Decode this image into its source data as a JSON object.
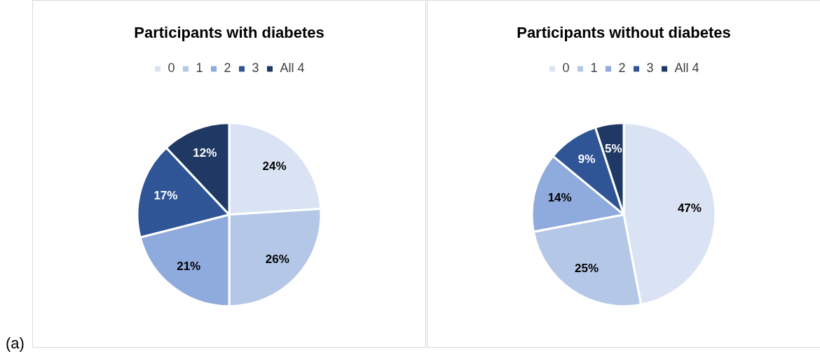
{
  "chart_data": [
    {
      "type": "pie",
      "title": "Participants with diabetes",
      "categories": [
        "0",
        "1",
        "2",
        "3",
        "All 4"
      ],
      "values": [
        24,
        26,
        21,
        17,
        12
      ],
      "value_labels": [
        "24%",
        "26%",
        "21%",
        "17%",
        "12%"
      ],
      "colors": [
        "#dae3f3",
        "#b4c7e7",
        "#8faadc",
        "#2f5597",
        "#1f3864"
      ],
      "legend": "top",
      "annotations": [
        "(a)"
      ]
    },
    {
      "type": "pie",
      "title": "Participants without diabetes",
      "categories": [
        "0",
        "1",
        "2",
        "3",
        "All 4"
      ],
      "values": [
        47,
        25,
        14,
        9,
        5
      ],
      "value_labels": [
        "47%",
        "25%",
        "14%",
        "9%",
        "5%"
      ],
      "colors": [
        "#dae3f3",
        "#b4c7e7",
        "#8faadc",
        "#2f5597",
        "#1f3864"
      ],
      "legend": "top"
    }
  ]
}
